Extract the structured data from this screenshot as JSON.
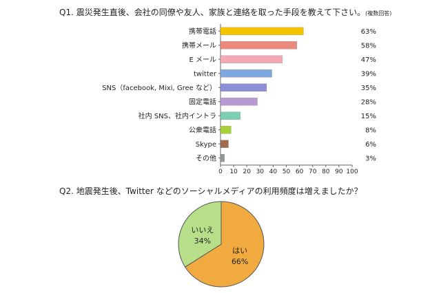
{
  "chart_data": [
    {
      "type": "bar",
      "orientation": "horizontal",
      "title": "Q1. 震災発生直後、会社の同僚や友人、家族と連絡を取った手段を教えて下さい。",
      "title_note": "(複数回答)",
      "categories": [
        "携帯電話",
        "携帯メール",
        "E メール",
        "twitter",
        "SNS（facebook, Mixi, Gree など）",
        "固定電話",
        "社内 SNS、社内イントラ",
        "公衆電話",
        "Skype",
        "その他"
      ],
      "values": [
        63,
        58,
        47,
        39,
        35,
        28,
        15,
        8,
        6,
        3
      ],
      "value_labels": [
        "63%",
        "58%",
        "47%",
        "39%",
        "35%",
        "28%",
        "15%",
        "8%",
        "6%",
        "3%"
      ],
      "colors": [
        "#f5c400",
        "#ec8b7b",
        "#f3aab5",
        "#7fa8e0",
        "#8d8fd6",
        "#b79ad2",
        "#7ccfb0",
        "#a9d23a",
        "#a26a4f",
        "#8f9a98"
      ],
      "xlim": [
        0,
        100
      ],
      "xticks": [
        0,
        10,
        20,
        30,
        40,
        50,
        60,
        70,
        80,
        90,
        100
      ],
      "grid": false
    },
    {
      "type": "pie",
      "title": "Q2. 地震発生後、Twitter などのソーシャルメディアの利用頻度は増えましたか？",
      "slices": [
        {
          "label": "はい",
          "value": 66,
          "value_label": "66%",
          "color": "#f1aa40"
        },
        {
          "label": "いいえ",
          "value": 34,
          "value_label": "34%",
          "color": "#b7df8a"
        }
      ]
    }
  ]
}
